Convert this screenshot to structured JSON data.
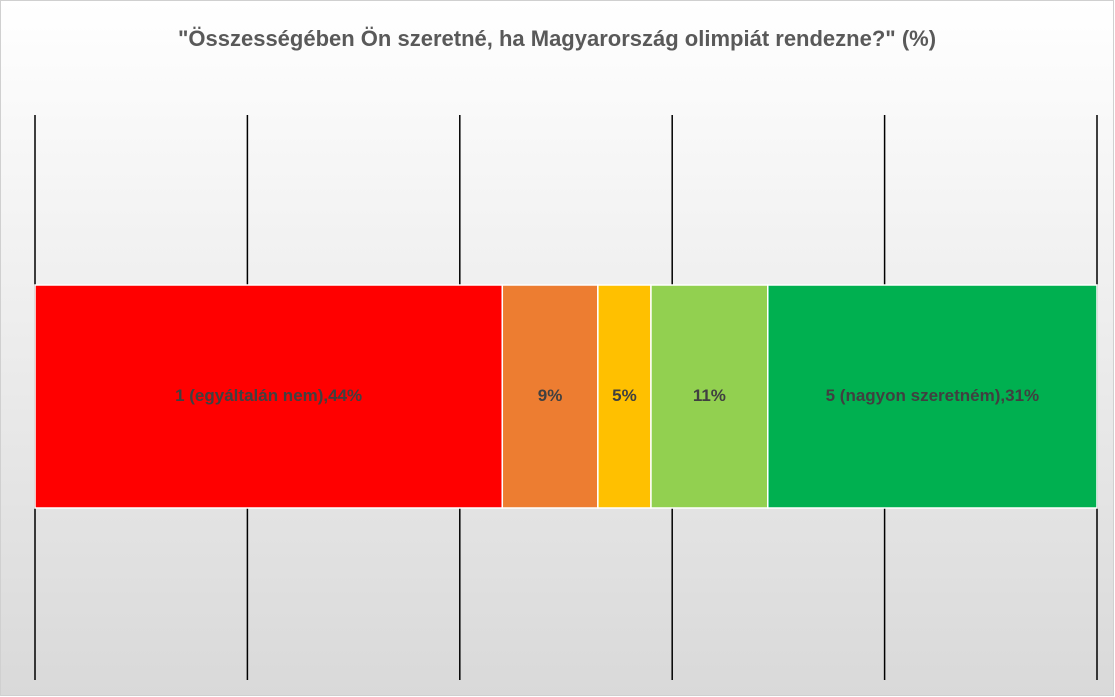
{
  "chart_data": {
    "type": "stacked_bar_horizontal",
    "title": "\"Összességében Ön szeretné, ha Magyarország olimpiát rendezne?\" (%)",
    "categories": [
      null
    ],
    "series": [
      {
        "color": "#ff0000",
        "values": [
          44
        ],
        "value_labels": [
          "1 (egyáltalán nem),44%"
        ]
      },
      {
        "color": "#ed7d31",
        "values": [
          9
        ],
        "value_labels": [
          "9%"
        ]
      },
      {
        "color": "#ffc000",
        "values": [
          5
        ],
        "value_labels": [
          "5%"
        ]
      },
      {
        "color": "#92d050",
        "values": [
          11
        ],
        "value_labels": [
          "11%"
        ]
      },
      {
        "color": "#00b050",
        "values": [
          31
        ],
        "value_labels": [
          "5 (nagyon szeretném),31%"
        ]
      }
    ],
    "xlim": [
      0,
      100
    ],
    "xticks": [
      0,
      20,
      40,
      60,
      80,
      100
    ],
    "grid": true
  }
}
